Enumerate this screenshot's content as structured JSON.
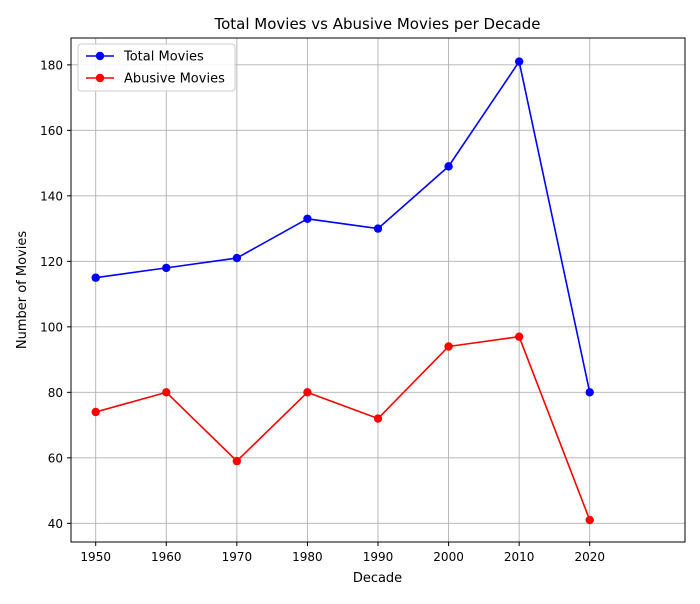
{
  "chart_data": {
    "type": "line",
    "title": "Total Movies vs Abusive Movies per Decade",
    "xlabel": "Decade",
    "ylabel": "Number of Movies",
    "x": [
      1950,
      1960,
      1970,
      1980,
      1990,
      2000,
      2010,
      2020
    ],
    "x_ticks": [
      "1950",
      "1960",
      "1970",
      "1980",
      "1990",
      "2000",
      "2010",
      "2020"
    ],
    "xlim": [
      1946.5,
      2033.5
    ],
    "ylim": [
      34.3,
      188.2
    ],
    "y_ticks": [
      "40",
      "60",
      "80",
      "100",
      "120",
      "140",
      "160",
      "180"
    ],
    "grid": true,
    "legend_position": "upper-left",
    "series": [
      {
        "name": "Total Movies",
        "color": "#0000ff",
        "marker": "circle",
        "values": [
          115,
          118,
          121,
          133,
          130,
          149,
          181,
          80
        ]
      },
      {
        "name": "Abusive Movies",
        "color": "#ff0000",
        "marker": "circle",
        "values": [
          74,
          80,
          59,
          80,
          72,
          94,
          97,
          41
        ]
      }
    ]
  }
}
